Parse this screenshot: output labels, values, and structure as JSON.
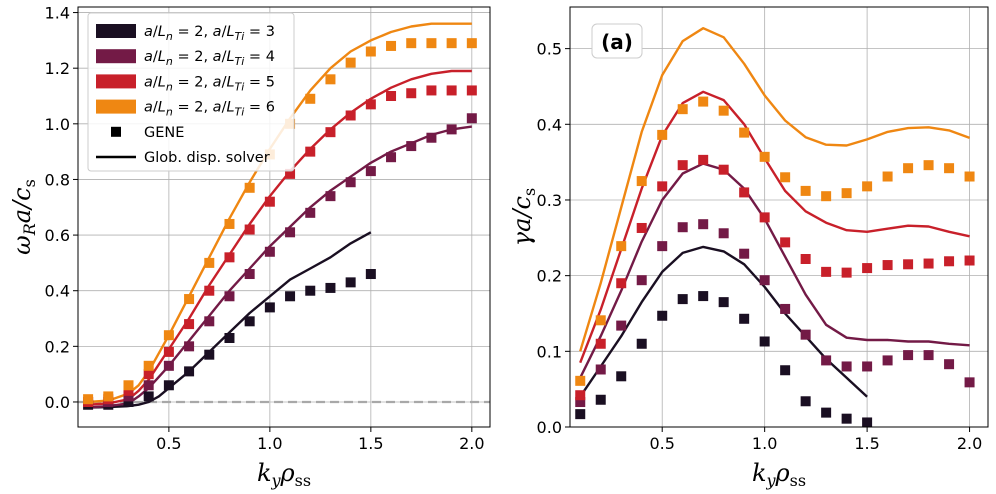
{
  "chart_data": [
    {
      "type": "line+scatter",
      "ylabel": "ωRa/cs",
      "xlabel": "kyρss",
      "xlim": [
        0.05,
        2.09
      ],
      "ylim": [
        -0.09,
        1.42
      ],
      "xticks": [
        0.5,
        1.0,
        1.5,
        2.0
      ],
      "xtick_labels": [
        "0.5",
        "1.0",
        "1.5",
        "2.0"
      ],
      "yticks": [
        0.0,
        0.2,
        0.4,
        0.6,
        0.8,
        1.0,
        1.2,
        1.4
      ],
      "ytick_labels": [
        "0.0",
        "0.2",
        "0.4",
        "0.6",
        "0.8",
        "1.0",
        "1.2",
        "1.4"
      ],
      "grid": true,
      "zero_line": true,
      "legend": {
        "position": "top-left",
        "entries": [
          {
            "label_main": "a/Ln = 2, a/LTi = 3",
            "color": "#1a0f22",
            "marker": "square-large"
          },
          {
            "label_main": "a/Ln = 2, a/LTi = 4",
            "color": "#731a46",
            "marker": "square-large"
          },
          {
            "label_main": "a/Ln = 2, a/LTi = 5",
            "color": "#c8202a",
            "marker": "square-large"
          },
          {
            "label_main": "a/Ln = 2, a/LTi = 6",
            "color": "#ef8712",
            "marker": "square-large"
          },
          {
            "label_main": "GENE",
            "color": "#000000",
            "marker": "square"
          },
          {
            "label_main": "Glob. disp. solver",
            "color": "#000000",
            "marker": "line"
          }
        ]
      },
      "series": [
        {
          "name": "a/LTi = 3",
          "color": "#1a0f22",
          "line_x": [
            0.1,
            0.2,
            0.3,
            0.35,
            0.4,
            0.45,
            0.5,
            0.6,
            0.7,
            0.8,
            0.9,
            1.0,
            1.1,
            1.2,
            1.3,
            1.4,
            1.5
          ],
          "line_y": [
            -0.02,
            -0.018,
            -0.015,
            -0.01,
            0.0,
            0.02,
            0.05,
            0.11,
            0.18,
            0.25,
            0.32,
            0.38,
            0.44,
            0.48,
            0.52,
            0.57,
            0.61
          ],
          "gene_x": [
            0.1,
            0.2,
            0.3,
            0.4,
            0.5,
            0.6,
            0.7,
            0.8,
            0.9,
            1.0,
            1.1,
            1.2,
            1.3,
            1.4,
            1.5
          ],
          "gene_y": [
            -0.01,
            -0.01,
            0.0,
            0.02,
            0.06,
            0.11,
            0.17,
            0.23,
            0.29,
            0.34,
            0.38,
            0.4,
            0.41,
            0.43,
            0.46
          ]
        },
        {
          "name": "a/LTi = 4",
          "color": "#731a46",
          "line_x": [
            0.1,
            0.2,
            0.3,
            0.35,
            0.4,
            0.5,
            0.6,
            0.7,
            0.8,
            0.9,
            1.0,
            1.1,
            1.2,
            1.3,
            1.4,
            1.5,
            1.6,
            1.7,
            1.8,
            1.9,
            2.0
          ],
          "line_y": [
            -0.02,
            -0.015,
            -0.005,
            0.02,
            0.05,
            0.13,
            0.22,
            0.31,
            0.4,
            0.48,
            0.56,
            0.63,
            0.7,
            0.76,
            0.81,
            0.86,
            0.9,
            0.93,
            0.96,
            0.98,
            0.99
          ],
          "gene_x": [
            0.1,
            0.2,
            0.3,
            0.4,
            0.5,
            0.6,
            0.7,
            0.8,
            0.9,
            1.0,
            1.1,
            1.2,
            1.3,
            1.4,
            1.5,
            1.6,
            1.7,
            1.8,
            1.9,
            2.0
          ],
          "gene_y": [
            0.0,
            0.0,
            0.02,
            0.06,
            0.13,
            0.2,
            0.29,
            0.38,
            0.46,
            0.54,
            0.61,
            0.68,
            0.74,
            0.79,
            0.83,
            0.88,
            0.92,
            0.95,
            0.98,
            1.02
          ]
        },
        {
          "name": "a/LTi = 5",
          "color": "#c8202a",
          "line_x": [
            0.1,
            0.2,
            0.3,
            0.35,
            0.4,
            0.5,
            0.6,
            0.7,
            0.8,
            0.9,
            1.0,
            1.1,
            1.2,
            1.3,
            1.4,
            1.5,
            1.6,
            1.7,
            1.8,
            1.9,
            2.0
          ],
          "line_y": [
            -0.01,
            -0.005,
            0.01,
            0.04,
            0.08,
            0.19,
            0.3,
            0.42,
            0.53,
            0.64,
            0.74,
            0.83,
            0.91,
            0.98,
            1.04,
            1.09,
            1.13,
            1.16,
            1.18,
            1.19,
            1.19
          ],
          "gene_x": [
            0.1,
            0.2,
            0.3,
            0.4,
            0.5,
            0.6,
            0.7,
            0.8,
            0.9,
            1.0,
            1.1,
            1.2,
            1.3,
            1.4,
            1.5,
            1.6,
            1.7,
            1.8,
            1.9,
            2.0
          ],
          "gene_y": [
            0.0,
            0.01,
            0.04,
            0.1,
            0.18,
            0.28,
            0.4,
            0.52,
            0.62,
            0.72,
            0.82,
            0.9,
            0.97,
            1.03,
            1.07,
            1.1,
            1.11,
            1.12,
            1.12,
            1.12
          ]
        },
        {
          "name": "a/LTi = 6",
          "color": "#ef8712",
          "line_x": [
            0.1,
            0.2,
            0.3,
            0.35,
            0.4,
            0.5,
            0.6,
            0.7,
            0.8,
            0.9,
            1.0,
            1.1,
            1.2,
            1.3,
            1.4,
            1.5,
            1.6,
            1.7,
            1.8,
            1.9,
            2.0
          ],
          "line_y": [
            0.0,
            0.005,
            0.03,
            0.06,
            0.11,
            0.24,
            0.38,
            0.52,
            0.66,
            0.79,
            0.91,
            1.02,
            1.12,
            1.2,
            1.26,
            1.3,
            1.33,
            1.35,
            1.36,
            1.36,
            1.36
          ],
          "gene_x": [
            0.1,
            0.2,
            0.3,
            0.4,
            0.5,
            0.6,
            0.7,
            0.8,
            0.9,
            1.0,
            1.1,
            1.2,
            1.3,
            1.4,
            1.5,
            1.6,
            1.7,
            1.8,
            1.9,
            2.0
          ],
          "gene_y": [
            0.01,
            0.02,
            0.06,
            0.13,
            0.24,
            0.37,
            0.5,
            0.64,
            0.77,
            0.89,
            1.0,
            1.09,
            1.16,
            1.22,
            1.26,
            1.28,
            1.29,
            1.29,
            1.29,
            1.29
          ]
        }
      ]
    },
    {
      "type": "line+scatter",
      "ylabel": "γa/cs",
      "xlabel": "kyρss",
      "panel_tag": "(a)",
      "xlim": [
        0.05,
        2.09
      ],
      "ylim": [
        0.0,
        0.555
      ],
      "xticks": [
        0.5,
        1.0,
        1.5,
        2.0
      ],
      "xtick_labels": [
        "0.5",
        "1.0",
        "1.5",
        "2.0"
      ],
      "yticks": [
        0.0,
        0.1,
        0.2,
        0.3,
        0.4,
        0.5
      ],
      "ytick_labels": [
        "0.0",
        "0.1",
        "0.2",
        "0.3",
        "0.4",
        "0.5"
      ],
      "grid": true,
      "series": [
        {
          "name": "a/LTi = 3",
          "color": "#1a0f22",
          "line_x": [
            0.1,
            0.2,
            0.3,
            0.4,
            0.5,
            0.6,
            0.7,
            0.8,
            0.9,
            1.0,
            1.1,
            1.2,
            1.3,
            1.4,
            1.5
          ],
          "line_y": [
            0.04,
            0.08,
            0.12,
            0.165,
            0.205,
            0.23,
            0.238,
            0.232,
            0.215,
            0.185,
            0.15,
            0.12,
            0.09,
            0.065,
            0.04
          ],
          "gene_x": [
            0.1,
            0.2,
            0.3,
            0.4,
            0.5,
            0.6,
            0.7,
            0.8,
            0.9,
            1.0,
            1.1,
            1.2,
            1.3,
            1.4,
            1.5
          ],
          "gene_y": [
            0.017,
            0.036,
            0.067,
            0.11,
            0.147,
            0.169,
            0.173,
            0.165,
            0.143,
            0.113,
            0.075,
            0.034,
            0.019,
            0.011,
            0.006
          ]
        },
        {
          "name": "a/LTi = 4",
          "color": "#731a46",
          "line_x": [
            0.1,
            0.2,
            0.3,
            0.4,
            0.5,
            0.6,
            0.7,
            0.8,
            0.9,
            1.0,
            1.1,
            1.2,
            1.3,
            1.4,
            1.5,
            1.6,
            1.7,
            1.8,
            1.9,
            2.0
          ],
          "line_y": [
            0.065,
            0.12,
            0.18,
            0.245,
            0.3,
            0.335,
            0.348,
            0.34,
            0.315,
            0.275,
            0.225,
            0.175,
            0.135,
            0.118,
            0.115,
            0.115,
            0.113,
            0.113,
            0.11,
            0.108
          ],
          "gene_x": [
            0.1,
            0.2,
            0.3,
            0.4,
            0.5,
            0.6,
            0.7,
            0.8,
            0.9,
            1.0,
            1.1,
            1.2,
            1.3,
            1.4,
            1.5,
            1.6,
            1.7,
            1.8,
            1.9,
            2.0
          ],
          "gene_y": [
            0.033,
            0.076,
            0.134,
            0.194,
            0.239,
            0.264,
            0.268,
            0.256,
            0.229,
            0.194,
            0.156,
            0.122,
            0.088,
            0.08,
            0.08,
            0.088,
            0.095,
            0.095,
            0.083,
            0.059
          ]
        },
        {
          "name": "a/LTi = 5",
          "color": "#c8202a",
          "line_x": [
            0.1,
            0.2,
            0.3,
            0.4,
            0.5,
            0.6,
            0.7,
            0.8,
            0.9,
            1.0,
            1.1,
            1.2,
            1.3,
            1.4,
            1.5,
            1.6,
            1.7,
            1.8,
            1.9,
            2.0
          ],
          "line_y": [
            0.085,
            0.155,
            0.235,
            0.315,
            0.385,
            0.428,
            0.443,
            0.432,
            0.4,
            0.355,
            0.312,
            0.285,
            0.27,
            0.26,
            0.258,
            0.262,
            0.266,
            0.265,
            0.258,
            0.252
          ],
          "gene_x": [
            0.1,
            0.2,
            0.3,
            0.4,
            0.5,
            0.6,
            0.7,
            0.8,
            0.9,
            1.0,
            1.1,
            1.2,
            1.3,
            1.4,
            1.5,
            1.6,
            1.7,
            1.8,
            1.9,
            2.0
          ],
          "gene_y": [
            0.042,
            0.11,
            0.19,
            0.263,
            0.318,
            0.346,
            0.353,
            0.34,
            0.31,
            0.277,
            0.244,
            0.222,
            0.205,
            0.204,
            0.21,
            0.214,
            0.215,
            0.216,
            0.219,
            0.22
          ]
        },
        {
          "name": "a/LTi = 6",
          "color": "#ef8712",
          "line_x": [
            0.1,
            0.2,
            0.3,
            0.4,
            0.5,
            0.6,
            0.7,
            0.8,
            0.9,
            1.0,
            1.1,
            1.2,
            1.3,
            1.4,
            1.5,
            1.6,
            1.7,
            1.8,
            1.9,
            2.0
          ],
          "line_y": [
            0.1,
            0.19,
            0.29,
            0.39,
            0.465,
            0.51,
            0.527,
            0.515,
            0.48,
            0.438,
            0.405,
            0.383,
            0.373,
            0.372,
            0.38,
            0.39,
            0.395,
            0.396,
            0.392,
            0.382
          ],
          "gene_x": [
            0.1,
            0.2,
            0.3,
            0.4,
            0.5,
            0.6,
            0.7,
            0.8,
            0.9,
            1.0,
            1.1,
            1.2,
            1.3,
            1.4,
            1.5,
            1.6,
            1.7,
            1.8,
            1.9,
            2.0
          ],
          "gene_y": [
            0.061,
            0.141,
            0.239,
            0.325,
            0.386,
            0.42,
            0.43,
            0.418,
            0.389,
            0.357,
            0.33,
            0.312,
            0.305,
            0.309,
            0.318,
            0.331,
            0.342,
            0.346,
            0.342,
            0.331
          ]
        }
      ]
    }
  ]
}
